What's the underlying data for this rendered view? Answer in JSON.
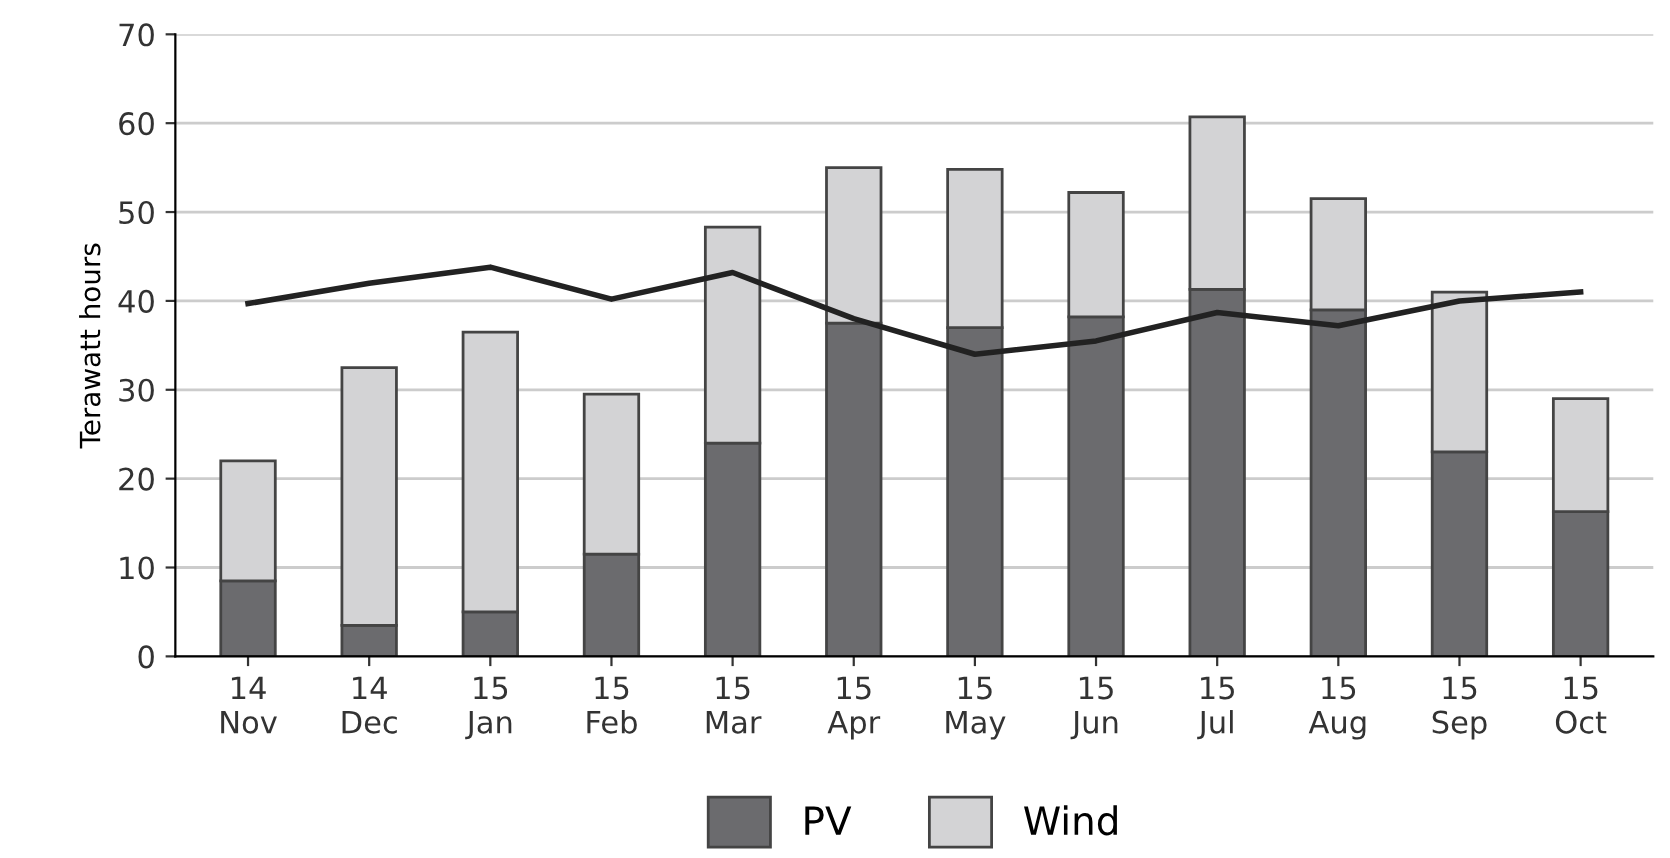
{
  "chart_data": {
    "type": "bar",
    "ylabel": "Terawatt hours",
    "stacked": true,
    "categories": [
      "14\nNov",
      "14\nDec",
      "15\nJan",
      "15\nFeb",
      "15\nMar",
      "15\nApr",
      "15\nMay",
      "15\nJun",
      "15\nJul",
      "15\nAug",
      "15\nSep",
      "15\nOct"
    ],
    "series": [
      {
        "name": "PV",
        "color": "#6b6b6e",
        "values": [
          8.5,
          3.5,
          5,
          11.5,
          24,
          37.5,
          37,
          38.2,
          41.3,
          39,
          23,
          16.3
        ]
      },
      {
        "name": "Wind",
        "color": "#d3d3d5",
        "values": [
          13.5,
          29,
          31.5,
          18,
          24.3,
          17.5,
          17.8,
          14,
          19.4,
          12.5,
          18,
          12.7
        ]
      },
      {
        "type": "line",
        "color": "#222222",
        "values": [
          39.7,
          42,
          43.8,
          40.2,
          43.2,
          38,
          34,
          35.5,
          38.7,
          37.2,
          40,
          41
        ]
      }
    ],
    "ylim": [
      0,
      70
    ],
    "yticks": [
      0,
      10,
      20,
      30,
      40,
      50,
      60,
      70
    ],
    "grid": "y",
    "legend": "bottom",
    "marker": "none",
    "line_style": "solid"
  }
}
